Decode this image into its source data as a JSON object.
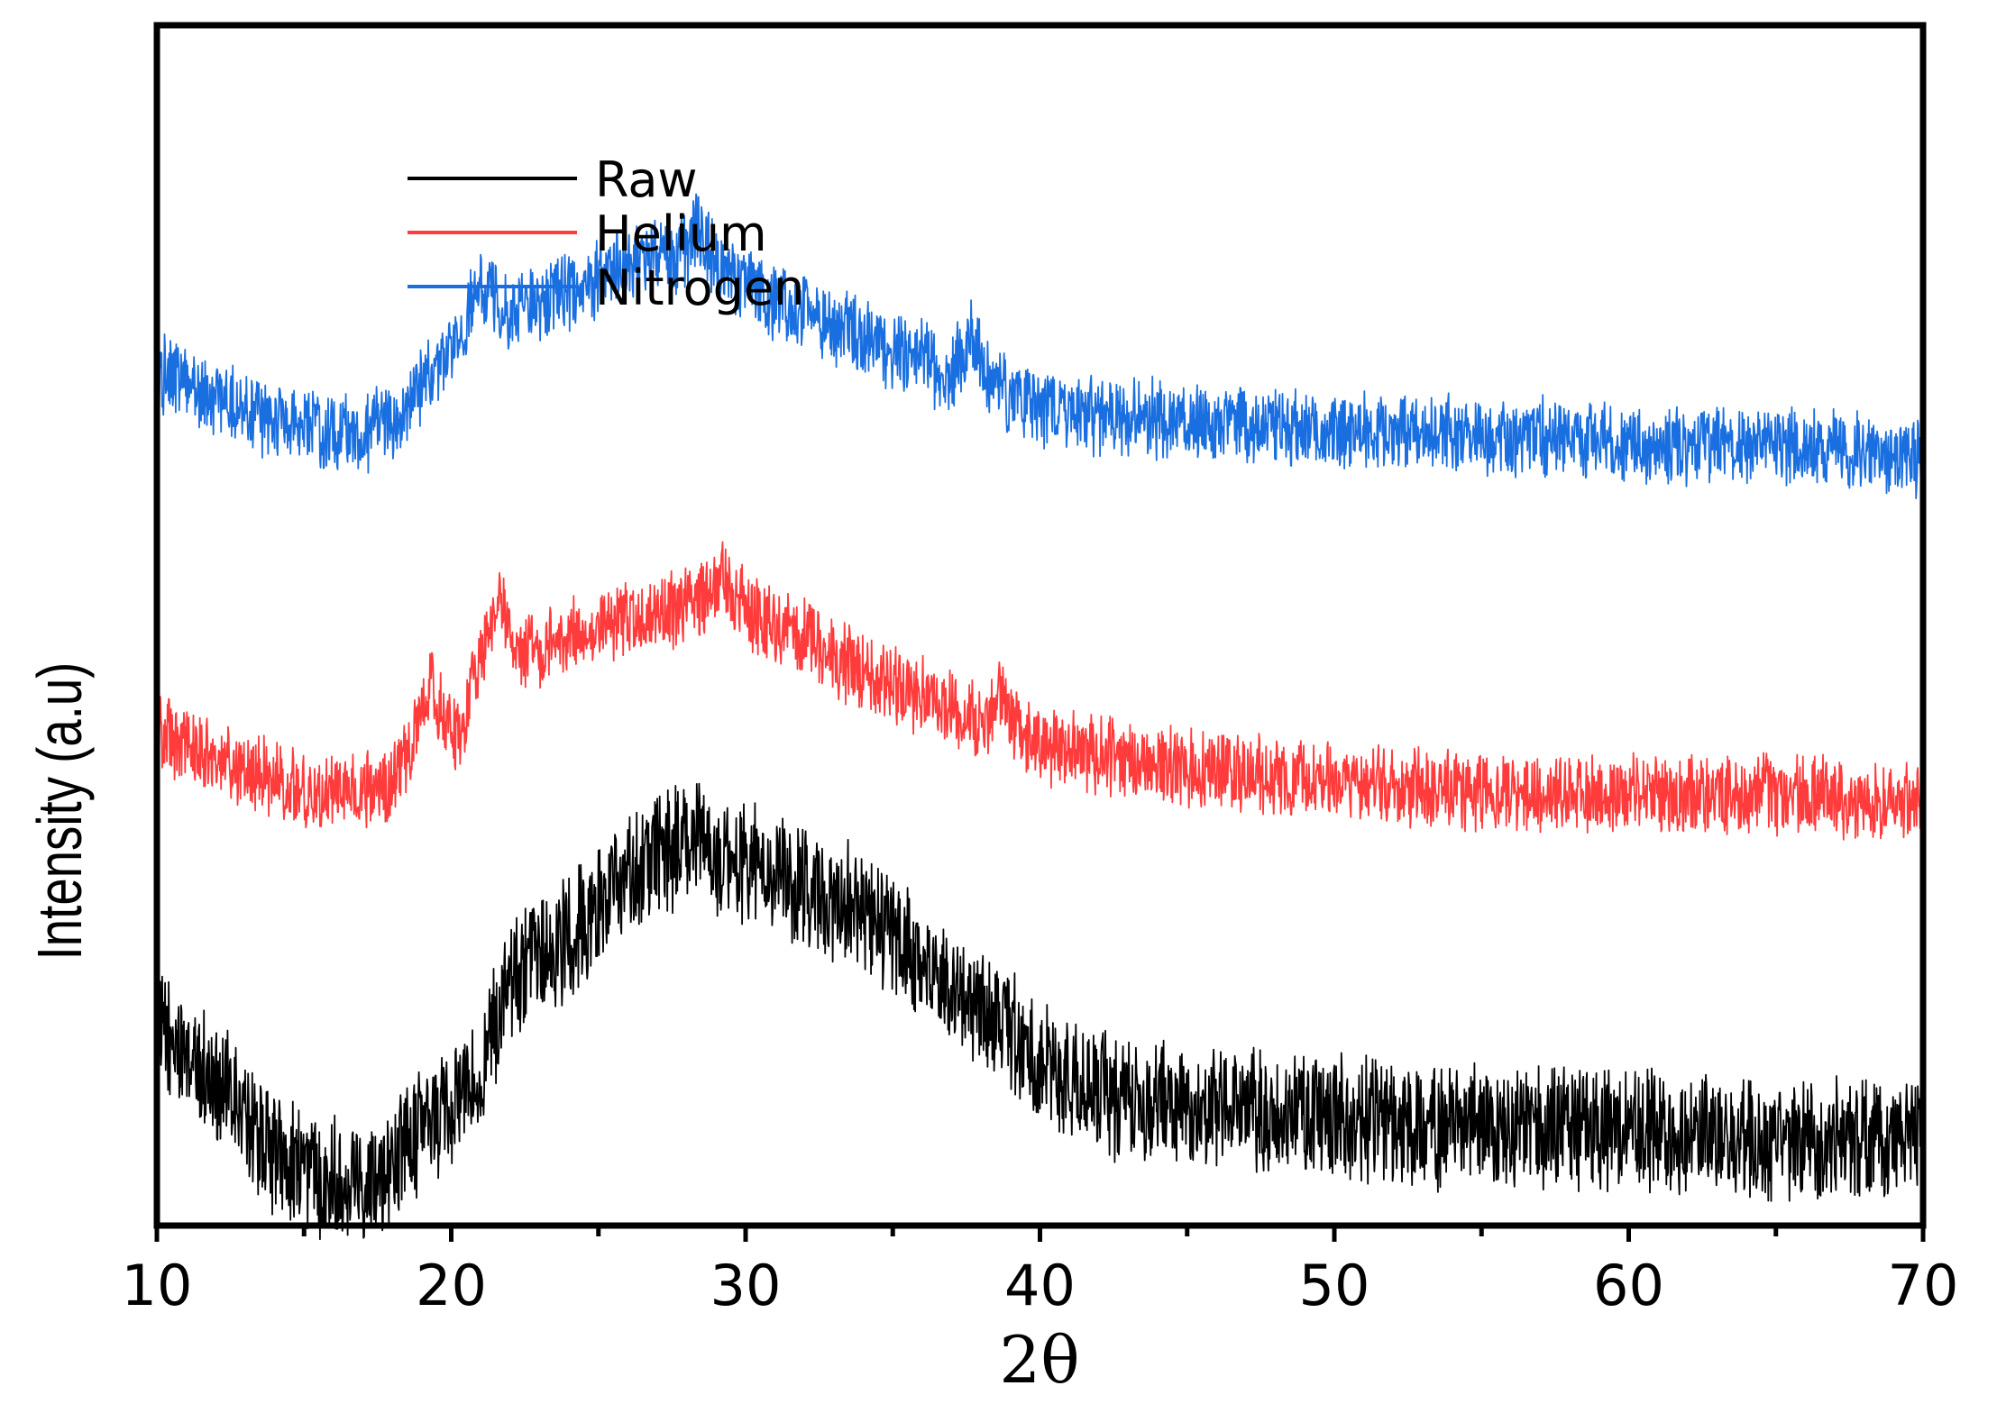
{
  "chart_data": {
    "type": "line",
    "title": "",
    "xlabel": "2θ",
    "ylabel": "Intensity (a.u)",
    "xlim": [
      10,
      70
    ],
    "ylim": [
      0,
      100
    ],
    "x_ticks": [
      "10",
      "20",
      "30",
      "40",
      "50",
      "60",
      "70"
    ],
    "y_ticks_shown": false,
    "legend_position": "top-left",
    "series": [
      {
        "name": "Raw",
        "color": "#000000",
        "noise": 4.5,
        "points": [
          [
            10,
            16
          ],
          [
            11,
            14
          ],
          [
            12,
            12
          ],
          [
            13,
            9
          ],
          [
            14,
            6
          ],
          [
            15,
            5
          ],
          [
            16,
            4
          ],
          [
            17,
            4
          ],
          [
            18,
            5
          ],
          [
            19,
            8
          ],
          [
            20,
            10
          ],
          [
            21,
            13
          ],
          [
            22,
            20
          ],
          [
            24,
            24
          ],
          [
            26,
            29
          ],
          [
            27,
            31
          ],
          [
            28,
            32
          ],
          [
            29,
            31
          ],
          [
            30,
            30
          ],
          [
            31,
            29
          ],
          [
            32,
            28
          ],
          [
            34,
            26
          ],
          [
            35,
            24
          ],
          [
            36,
            22
          ],
          [
            37,
            20
          ],
          [
            38,
            18
          ],
          [
            39,
            16
          ],
          [
            40,
            13
          ],
          [
            42,
            11
          ],
          [
            45,
            10
          ],
          [
            50,
            9
          ],
          [
            55,
            8
          ],
          [
            60,
            8
          ],
          [
            65,
            7
          ],
          [
            70,
            7
          ]
        ]
      },
      {
        "name": "Helium",
        "color": "#ff3b3b",
        "noise": 2.8,
        "points": [
          [
            10,
            41
          ],
          [
            12,
            39
          ],
          [
            14,
            37
          ],
          [
            15,
            36
          ],
          [
            16,
            36
          ],
          [
            17,
            36
          ],
          [
            18,
            37
          ],
          [
            18.8,
            41
          ],
          [
            19.3,
            45
          ],
          [
            19.8,
            42
          ],
          [
            20.3,
            41
          ],
          [
            21,
            47
          ],
          [
            21.6,
            53
          ],
          [
            22.1,
            48
          ],
          [
            23,
            48
          ],
          [
            25,
            50
          ],
          [
            27,
            51
          ],
          [
            28.5,
            52
          ],
          [
            29.2,
            54
          ],
          [
            30,
            51
          ],
          [
            32,
            49
          ],
          [
            34,
            46
          ],
          [
            36,
            44
          ],
          [
            38,
            42
          ],
          [
            38.7,
            44
          ],
          [
            39.3,
            41
          ],
          [
            40,
            40
          ],
          [
            45,
            38
          ],
          [
            50,
            37
          ],
          [
            55,
            36
          ],
          [
            60,
            36
          ],
          [
            65,
            36
          ],
          [
            70,
            35
          ]
        ]
      },
      {
        "name": "Nitrogen",
        "color": "#1a6fe0",
        "noise": 2.8,
        "points": [
          [
            10,
            71
          ],
          [
            12,
            69
          ],
          [
            14,
            67
          ],
          [
            16,
            66
          ],
          [
            17,
            66
          ],
          [
            18,
            67
          ],
          [
            19,
            70
          ],
          [
            20,
            73
          ],
          [
            21,
            78
          ],
          [
            22,
            76
          ],
          [
            24,
            78
          ],
          [
            26,
            80
          ],
          [
            28,
            81
          ],
          [
            28.3,
            83
          ],
          [
            29,
            80
          ],
          [
            31,
            77
          ],
          [
            33,
            75
          ],
          [
            35,
            73
          ],
          [
            37,
            71
          ],
          [
            37.7,
            74
          ],
          [
            38.3,
            70
          ],
          [
            40,
            68
          ],
          [
            45,
            67
          ],
          [
            50,
            66
          ],
          [
            55,
            66
          ],
          [
            60,
            65
          ],
          [
            65,
            65
          ],
          [
            70,
            64
          ]
        ]
      }
    ]
  }
}
